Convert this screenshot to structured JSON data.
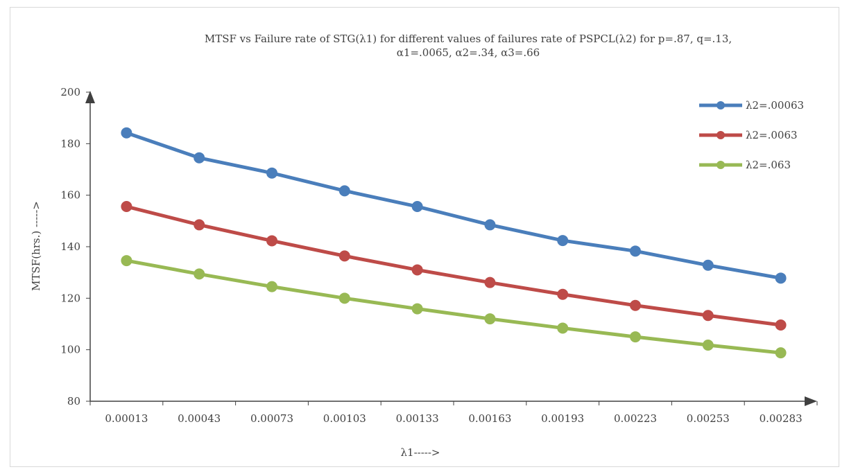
{
  "chart_data": {
    "type": "line",
    "title_line1": "MTSF vs Failure rate of STG(λ1)  for different values of failures rate of PSPCL(λ2) for p=.87, q=.13,",
    "title_line2": "α1=.0065, α2=.34, α3=.66",
    "xlabel": "λ1----->",
    "ylabel": "MTSF(hrs.)  ----->",
    "categories": [
      "0.00013",
      "0.00043",
      "0.00073",
      "0.00103",
      "0.00133",
      "0.00163",
      "0.00193",
      "0.00223",
      "0.00253",
      "0.00283"
    ],
    "ylim": [
      80,
      200
    ],
    "yticks": [
      "80",
      "100",
      "120",
      "140",
      "160",
      "180",
      "200"
    ],
    "grid": false,
    "legend_position": "top-right",
    "series": [
      {
        "name": "λ2=.00063",
        "color": "#4a7ebb",
        "values": [
          184.2,
          174.5,
          168.6,
          161.7,
          155.6,
          148.5,
          142.4,
          138.3,
          132.8,
          127.8
        ]
      },
      {
        "name": "λ2=.0063",
        "color": "#be4b48",
        "values": [
          155.6,
          148.5,
          142.3,
          136.4,
          131.0,
          126.1,
          121.5,
          117.2,
          113.3,
          109.6
        ]
      },
      {
        "name": "λ2=.063",
        "color": "#98b954",
        "values": [
          134.6,
          129.4,
          124.5,
          120.0,
          115.9,
          112.0,
          108.4,
          105.0,
          101.8,
          98.8
        ]
      }
    ]
  }
}
